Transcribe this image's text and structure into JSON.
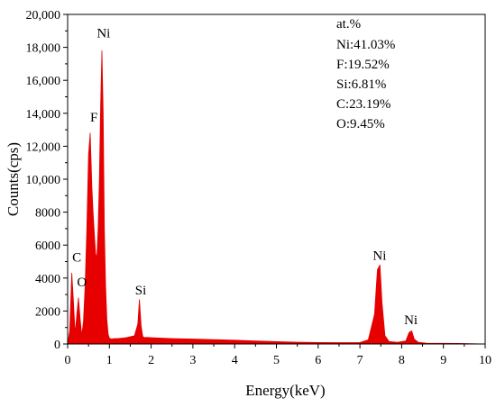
{
  "chart_data": {
    "type": "area",
    "title": "",
    "xlabel": "Energy(keV)",
    "ylabel": "Counts(cps)",
    "xlim": [
      0,
      10
    ],
    "ylim": [
      0,
      20000
    ],
    "grid": false,
    "legend": "none",
    "fill_color": "#e60000",
    "x_ticks": [
      0,
      1,
      2,
      3,
      4,
      5,
      6,
      7,
      8,
      9,
      10
    ],
    "y_ticks": [
      {
        "value": 0,
        "label": "0"
      },
      {
        "value": 2000,
        "label": "2000"
      },
      {
        "value": 4000,
        "label": "4000"
      },
      {
        "value": 6000,
        "label": "6000"
      },
      {
        "value": 8000,
        "label": "8000"
      },
      {
        "value": 10000,
        "label": "10,000"
      },
      {
        "value": 12000,
        "label": "12,000"
      },
      {
        "value": 14000,
        "label": "14,000"
      },
      {
        "value": 16000,
        "label": "16,000"
      },
      {
        "value": 18000,
        "label": "18,000"
      },
      {
        "value": 20000,
        "label": "20,000"
      }
    ],
    "series": [
      {
        "x": [
          0.0,
          0.05,
          0.1,
          0.14,
          0.18,
          0.22,
          0.26,
          0.3,
          0.34,
          0.38,
          0.42,
          0.46,
          0.5,
          0.54,
          0.58,
          0.61,
          0.64,
          0.67,
          0.7,
          0.73,
          0.76,
          0.79,
          0.82,
          0.85,
          0.88,
          0.91,
          0.94,
          0.97,
          1.0,
          1.05,
          1.1,
          1.2,
          1.4,
          1.6,
          1.68,
          1.72,
          1.76,
          1.8,
          1.85,
          1.9,
          2.0,
          2.5,
          3.0,
          3.5,
          4.0,
          4.5,
          5.0,
          5.5,
          6.0,
          6.5,
          7.0,
          7.2,
          7.35,
          7.42,
          7.48,
          7.53,
          7.6,
          7.7,
          7.9,
          8.1,
          8.18,
          8.24,
          8.3,
          8.4,
          8.6,
          9.0,
          9.5,
          10.0
        ],
        "y": [
          0,
          800,
          4300,
          2500,
          600,
          1800,
          2800,
          1500,
          500,
          1400,
          3500,
          7000,
          11500,
          12800,
          9500,
          8000,
          6700,
          5500,
          5200,
          7000,
          10000,
          14500,
          17800,
          14000,
          7000,
          3500,
          1500,
          600,
          350,
          300,
          320,
          330,
          380,
          500,
          1200,
          2700,
          1100,
          450,
          380,
          400,
          380,
          330,
          300,
          260,
          230,
          180,
          140,
          110,
          90,
          80,
          90,
          250,
          1800,
          4500,
          4800,
          2500,
          500,
          150,
          100,
          180,
          700,
          800,
          300,
          100,
          50,
          40,
          30,
          0
        ]
      }
    ],
    "annotations": [
      {
        "text": "Ni",
        "x": 0.86,
        "y": 18600
      },
      {
        "text": "F",
        "x": 0.63,
        "y": 13500
      },
      {
        "text": "C",
        "x": 0.22,
        "y": 5000
      },
      {
        "text": "O",
        "x": 0.34,
        "y": 3500
      },
      {
        "text": "Si",
        "x": 1.75,
        "y": 3000
      },
      {
        "text": "Ni",
        "x": 7.47,
        "y": 5100
      },
      {
        "text": "Ni",
        "x": 8.22,
        "y": 1200
      }
    ],
    "composition": {
      "header": "at.%",
      "items": [
        "Ni:41.03%",
        "F:19.52%",
        "Si:6.81%",
        "C:23.19%",
        "O:9.45%"
      ]
    }
  }
}
